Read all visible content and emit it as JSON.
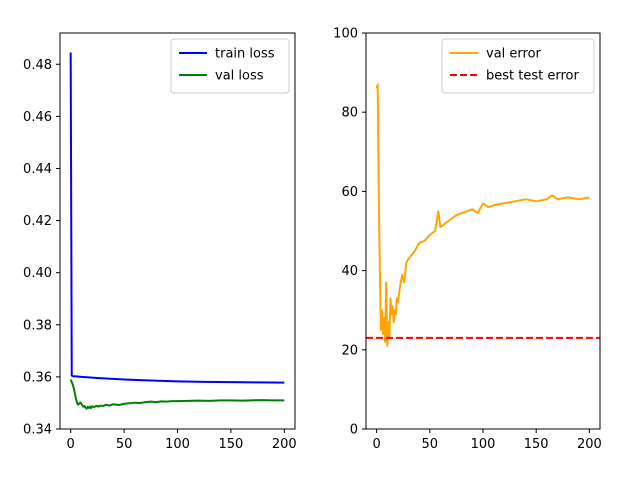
{
  "chart_data": [
    {
      "type": "line",
      "xlim": [
        -10,
        210
      ],
      "ylim": [
        0.34,
        0.492
      ],
      "x_ticks": [
        "0",
        "50",
        "100",
        "150",
        "200"
      ],
      "y_ticks": [
        "0.34",
        "0.36",
        "0.38",
        "0.40",
        "0.42",
        "0.44",
        "0.46",
        "0.48"
      ],
      "x_tick_values": [
        0,
        50,
        100,
        150,
        200
      ],
      "y_tick_values": [
        0.34,
        0.36,
        0.38,
        0.4,
        0.42,
        0.44,
        0.46,
        0.48
      ],
      "legend_position": "upper right",
      "series": [
        {
          "name": "train loss",
          "color": "#0000ff",
          "style": "solid",
          "x": [
            0,
            1,
            2,
            10,
            25,
            50,
            75,
            100,
            125,
            150,
            175,
            200
          ],
          "y": [
            0.4845,
            0.3605,
            0.3603,
            0.36,
            0.3596,
            0.359,
            0.3586,
            0.3583,
            0.3581,
            0.358,
            0.3579,
            0.3578
          ]
        },
        {
          "name": "val loss",
          "color": "#008000",
          "style": "solid",
          "x": [
            0,
            1,
            2,
            3,
            4,
            5,
            6,
            7,
            8,
            9,
            10,
            11,
            12,
            13,
            14,
            15,
            16,
            17,
            18,
            19,
            20,
            22,
            24,
            26,
            28,
            30,
            33,
            36,
            40,
            45,
            50,
            55,
            60,
            65,
            70,
            75,
            80,
            85,
            90,
            95,
            100,
            110,
            120,
            130,
            140,
            150,
            160,
            170,
            180,
            190,
            200
          ],
          "y": [
            0.359,
            0.358,
            0.357,
            0.3555,
            0.3535,
            0.3515,
            0.35,
            0.3493,
            0.3498,
            0.3502,
            0.3497,
            0.349,
            0.3485,
            0.3488,
            0.3482,
            0.3478,
            0.3485,
            0.3481,
            0.3486,
            0.348,
            0.3487,
            0.3484,
            0.3489,
            0.3486,
            0.349,
            0.3488,
            0.3493,
            0.349,
            0.3495,
            0.3492,
            0.3497,
            0.3499,
            0.3501,
            0.35,
            0.3503,
            0.3505,
            0.3503,
            0.3506,
            0.3505,
            0.3507,
            0.3507,
            0.3508,
            0.3509,
            0.3508,
            0.351,
            0.351,
            0.3509,
            0.351,
            0.3511,
            0.351,
            0.351
          ]
        }
      ]
    },
    {
      "type": "line",
      "xlim": [
        -10,
        210
      ],
      "ylim": [
        0,
        100
      ],
      "x_ticks": [
        "0",
        "50",
        "100",
        "150",
        "200"
      ],
      "y_ticks": [
        "0",
        "20",
        "40",
        "60",
        "80",
        "100"
      ],
      "x_tick_values": [
        0,
        50,
        100,
        150,
        200
      ],
      "y_tick_values": [
        0,
        20,
        40,
        60,
        80,
        100
      ],
      "legend_position": "upper right",
      "series": [
        {
          "name": "val error",
          "color": "#ffa500",
          "style": "solid",
          "x": [
            0,
            1,
            2,
            3,
            4,
            5,
            6,
            7,
            8,
            9,
            10,
            11,
            12,
            13,
            14,
            15,
            16,
            17,
            18,
            19,
            20,
            22,
            24,
            26,
            28,
            30,
            33,
            36,
            40,
            45,
            50,
            55,
            58,
            60,
            65,
            70,
            75,
            80,
            85,
            90,
            95,
            100,
            105,
            110,
            120,
            130,
            140,
            150,
            160,
            165,
            170,
            180,
            190,
            200
          ],
          "y": [
            86,
            87,
            60,
            40,
            25,
            30,
            24,
            28,
            22,
            37,
            21,
            27,
            23,
            33,
            29,
            31,
            27,
            30,
            29,
            33,
            32,
            36,
            39,
            37,
            42,
            43,
            44,
            45,
            47,
            47.5,
            49,
            50,
            55,
            51,
            52,
            53,
            54,
            54.5,
            55,
            55.5,
            54.5,
            57,
            56,
            56.5,
            57,
            57.5,
            58,
            57.5,
            58,
            59,
            58,
            58.5,
            58,
            58.5
          ]
        },
        {
          "name": "best test error",
          "color": "#ff0000",
          "style": "dashed",
          "x": [
            -10,
            210
          ],
          "y": [
            23,
            23
          ]
        }
      ]
    }
  ]
}
